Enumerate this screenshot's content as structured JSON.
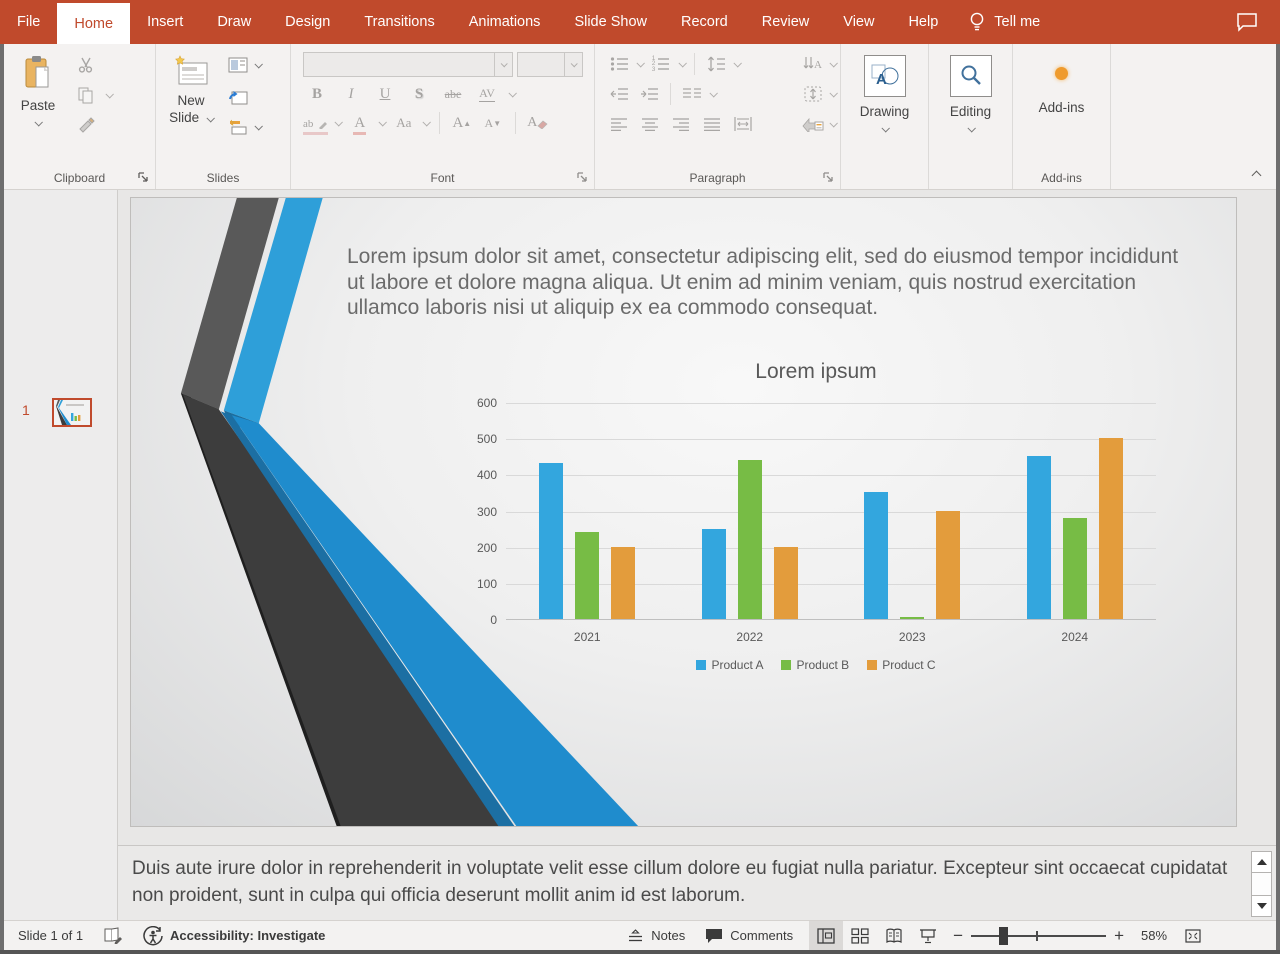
{
  "ribbon": {
    "tabs": [
      {
        "label": "File"
      },
      {
        "label": "Home"
      },
      {
        "label": "Insert"
      },
      {
        "label": "Draw"
      },
      {
        "label": "Design"
      },
      {
        "label": "Transitions"
      },
      {
        "label": "Animations"
      },
      {
        "label": "Slide Show"
      },
      {
        "label": "Record"
      },
      {
        "label": "Review"
      },
      {
        "label": "View"
      },
      {
        "label": "Help"
      }
    ],
    "tell_me": "Tell me"
  },
  "groups": {
    "clipboard": {
      "label": "Clipboard",
      "paste": "Paste"
    },
    "slides": {
      "label": "Slides",
      "new_line1": "New",
      "new_line2": "Slide"
    },
    "font": {
      "label": "Font",
      "bold": "B",
      "italic": "I",
      "underline": "U",
      "strike": "S",
      "strike2": "abe",
      "spacing": "AV",
      "highlight": "ab",
      "color": "A",
      "case": "Aa",
      "grow": "A",
      "shrink": "A",
      "clear": "A"
    },
    "paragraph": {
      "label": "Paragraph",
      "numbers": "1\n2\n3"
    },
    "drawing": {
      "label": "Drawing"
    },
    "editing": {
      "label": "Editing"
    },
    "addins": {
      "button": "Add-ins",
      "label": "Add-ins"
    }
  },
  "thumbnails": {
    "slide_number": "1"
  },
  "slide": {
    "body_text": "Lorem ipsum dolor sit amet, consectetur adipiscing elit, sed do eiusmod tempor incididunt ut labore et dolore magna aliqua. Ut enim ad minim veniam, quis nostrud exercitation ullamco laboris nisi ut aliquip ex ea commodo consequat."
  },
  "chart_data": {
    "type": "bar",
    "title": "Lorem ipsum",
    "categories": [
      "2021",
      "2022",
      "2023",
      "2024"
    ],
    "series": [
      {
        "name": "Product A",
        "color": "#33A6DE",
        "values": [
          430,
          250,
          350,
          450
        ]
      },
      {
        "name": "Product B",
        "color": "#77BC45",
        "values": [
          240,
          440,
          5,
          280
        ]
      },
      {
        "name": "Product C",
        "color": "#E39C3C",
        "values": [
          200,
          200,
          300,
          500
        ]
      }
    ],
    "ylim": [
      0,
      600
    ],
    "yticks": [
      0,
      100,
      200,
      300,
      400,
      500,
      600
    ],
    "grid": true,
    "legend_position": "bottom"
  },
  "notes": {
    "text": "Duis aute irure dolor in reprehenderit in voluptate velit esse cillum dolore eu fugiat nulla pariatur. Excepteur sint occaecat cupidatat non proident, sunt in culpa qui officia deserunt mollit anim id est laborum."
  },
  "status": {
    "slide_indicator": "Slide 1 of 1",
    "accessibility": "Accessibility: Investigate",
    "notes_label": "Notes",
    "comments_label": "Comments",
    "zoom_out": "−",
    "zoom_in": "+",
    "zoom_level": "58%"
  },
  "colors": {
    "ribbon_red": "#C04A2C",
    "accent_blue": "#33A6DE",
    "accent_green": "#77BC45",
    "accent_orange": "#E39C3C",
    "stripe_dark_top": "#595959",
    "stripe_dark_bottom": "#3D3D3D",
    "stripe_blue_top": "#2E9FD9",
    "stripe_blue_bottom": "#1F8CCD"
  }
}
